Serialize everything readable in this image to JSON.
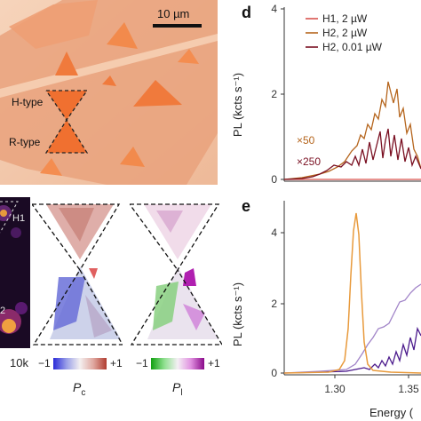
{
  "optical_image": {
    "scale_bar_label": "10 µm",
    "h_type_label": "H-type",
    "r_type_label": "R-type"
  },
  "maps": {
    "h1_label": "H1",
    "h2_label_fragment": "2",
    "intensity_colorbar_max": "10k",
    "pc_colorbar_min": "−1",
    "pc_colorbar_max": "+1",
    "pc_symbol": "P",
    "pc_subscript": "c",
    "pl_colorbar_min": "−1",
    "pl_colorbar_max": "+1",
    "pl_symbol": "P",
    "pl_subscript": "l"
  },
  "colors": {
    "h1": "#d9534f",
    "h2_2uw": "#b5651d",
    "h2_001uw": "#7a1022",
    "panel_e_orange": "#e89a3c",
    "panel_e_lavender": "#a184c8",
    "panel_e_dark": "#4b1a8c"
  },
  "chart_data": [
    {
      "panel_label": "d",
      "type": "line",
      "ylabel": "PL (kcts s⁻¹)",
      "yticks": [
        "0",
        "2",
        "4"
      ],
      "ylim": [
        0,
        4.2
      ],
      "legend_placement": "top-right",
      "legend": [
        "H1, 2 µW",
        "H2, 2 µW",
        "H2, 0.01 µW"
      ],
      "annotations": [
        "×50",
        "×250"
      ],
      "series": [
        {
          "name": "H1, 2 µW",
          "values": [
            0.02,
            0.02,
            0.02,
            0.02,
            0.02,
            0.02,
            0.02,
            0.02,
            0.02,
            0.02
          ]
        },
        {
          "name": "H2, 2 µW",
          "values": [
            0.05,
            0.1,
            0.3,
            0.6,
            1.0,
            1.5,
            2.3,
            1.6,
            1.0,
            0.6
          ]
        },
        {
          "name": "H2, 0.01 µW",
          "values": [
            0.05,
            0.1,
            0.2,
            0.35,
            0.5,
            0.8,
            1.3,
            0.9,
            0.6,
            0.4
          ]
        }
      ]
    },
    {
      "panel_label": "e",
      "type": "line",
      "ylabel": "PL (kcts s⁻¹)",
      "xlabel": "Energy (",
      "yticks": [
        "0",
        "2",
        "4"
      ],
      "xticks": [
        "1.30",
        "1.35"
      ],
      "xlim": [
        1.265,
        1.36
      ],
      "ylim": [
        0,
        4.9
      ],
      "series": [
        {
          "color_key": "orange",
          "x": [
            1.265,
            1.3,
            1.31,
            1.315,
            1.32,
            1.325,
            1.33,
            1.34,
            1.36
          ],
          "y": [
            0.0,
            0.05,
            0.3,
            2.0,
            4.6,
            2.0,
            0.3,
            0.05,
            0.0
          ]
        },
        {
          "color_key": "lavender",
          "x": [
            1.265,
            1.3,
            1.32,
            1.33,
            1.34,
            1.35,
            1.36
          ],
          "y": [
            0.0,
            0.1,
            0.4,
            1.0,
            1.4,
            1.9,
            2.4
          ]
        },
        {
          "color_key": "dark",
          "x": [
            1.265,
            1.3,
            1.32,
            1.33,
            1.34,
            1.35,
            1.36
          ],
          "y": [
            0.0,
            0.05,
            0.1,
            0.2,
            0.4,
            0.8,
            1.1
          ]
        }
      ]
    }
  ]
}
